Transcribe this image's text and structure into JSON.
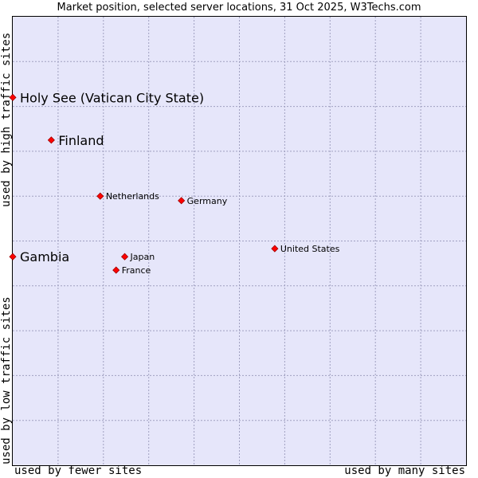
{
  "chart_data": {
    "type": "scatter",
    "title": "Market position, selected server locations, 31 Oct 2025, W3Techs.com",
    "xlabel_left": "used by fewer sites",
    "xlabel_right": "used by many sites",
    "ylabel_top": "used by high traffic sites",
    "ylabel_bottom": "used by low traffic sites",
    "xlim": [
      0,
      10
    ],
    "ylim": [
      0,
      10
    ],
    "grid": true,
    "points": [
      {
        "label": "Holy See (Vatican City State)",
        "x": 0.0,
        "y": 8.2,
        "emphasis": true
      },
      {
        "label": "Finland",
        "x": 0.85,
        "y": 7.25,
        "emphasis": true
      },
      {
        "label": "Netherlands",
        "x": 1.93,
        "y": 6.0,
        "emphasis": false
      },
      {
        "label": "Germany",
        "x": 3.72,
        "y": 5.9,
        "emphasis": false
      },
      {
        "label": "Gambia",
        "x": 0.0,
        "y": 4.65,
        "emphasis": true
      },
      {
        "label": "Japan",
        "x": 2.47,
        "y": 4.65,
        "emphasis": false
      },
      {
        "label": "France",
        "x": 2.28,
        "y": 4.35,
        "emphasis": false
      },
      {
        "label": "United States",
        "x": 5.78,
        "y": 4.83,
        "emphasis": false
      }
    ]
  },
  "colors": {
    "plot_background": "#e6e6fa",
    "grid": "#a0a0c0",
    "marker": "#ff0000",
    "marker_outline": "#a00000"
  }
}
